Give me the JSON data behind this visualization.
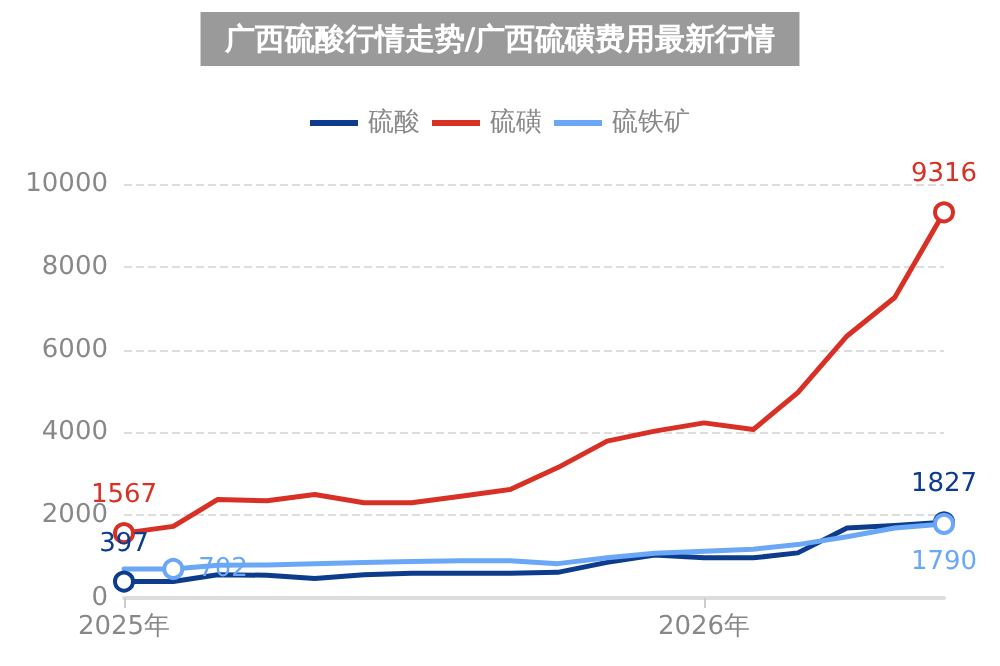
{
  "chart_data": {
    "type": "line",
    "title": "广西硫酸行情走势/广西硫磺费用最新行情",
    "x": [
      "2025-01",
      "2025-02",
      "2025-03",
      "2025-04",
      "2025-05",
      "2025-06",
      "2025-07",
      "2025-08",
      "2025-09",
      "2025-10",
      "2025-11",
      "2025-12",
      "2026-01",
      "2026-02",
      "2026-03",
      "2026-04",
      "2026-05",
      "2026-06"
    ],
    "series": [
      {
        "name": "硫酸",
        "color": "#0d3c8c",
        "values": [
          397,
          400,
          560,
          550,
          470,
          560,
          600,
          600,
          600,
          620,
          860,
          1040,
          970,
          970,
          1090,
          1690,
          1750,
          1827
        ],
        "value_labels": [
          "397",
          null,
          null,
          null,
          null,
          null,
          null,
          null,
          null,
          null,
          null,
          null,
          null,
          null,
          null,
          null,
          null,
          "1827"
        ]
      },
      {
        "name": "硫磺",
        "color": "#d93025",
        "values": [
          1567,
          1730,
          2380,
          2350,
          2500,
          2300,
          2300,
          2460,
          2620,
          3150,
          3790,
          4030,
          4230,
          4070,
          4960,
          6330,
          7260,
          9316
        ],
        "value_labels": [
          "1567",
          null,
          null,
          null,
          null,
          null,
          null,
          null,
          null,
          null,
          null,
          null,
          null,
          null,
          null,
          null,
          null,
          "9316"
        ]
      },
      {
        "name": "硫铁矿",
        "color": "#6aa8f7",
        "values": [
          700,
          702,
          790,
          800,
          830,
          860,
          880,
          900,
          900,
          830,
          970,
          1080,
          1130,
          1180,
          1290,
          1480,
          1690,
          1790
        ],
        "value_labels": [
          null,
          "702",
          null,
          null,
          null,
          null,
          null,
          null,
          null,
          null,
          null,
          null,
          null,
          null,
          null,
          null,
          null,
          "1790"
        ]
      }
    ],
    "xlim": [
      "2025-01",
      "2026-06"
    ],
    "xticks": [
      {
        "value": "2025-01",
        "label": "2025年"
      },
      {
        "value": "2026-01",
        "label": "2026年"
      }
    ],
    "ylim": [
      0,
      10000
    ],
    "yticks": [
      0,
      2000,
      4000,
      6000,
      8000,
      10000
    ],
    "grid": "y",
    "legend": "top",
    "line_style": "solid"
  }
}
